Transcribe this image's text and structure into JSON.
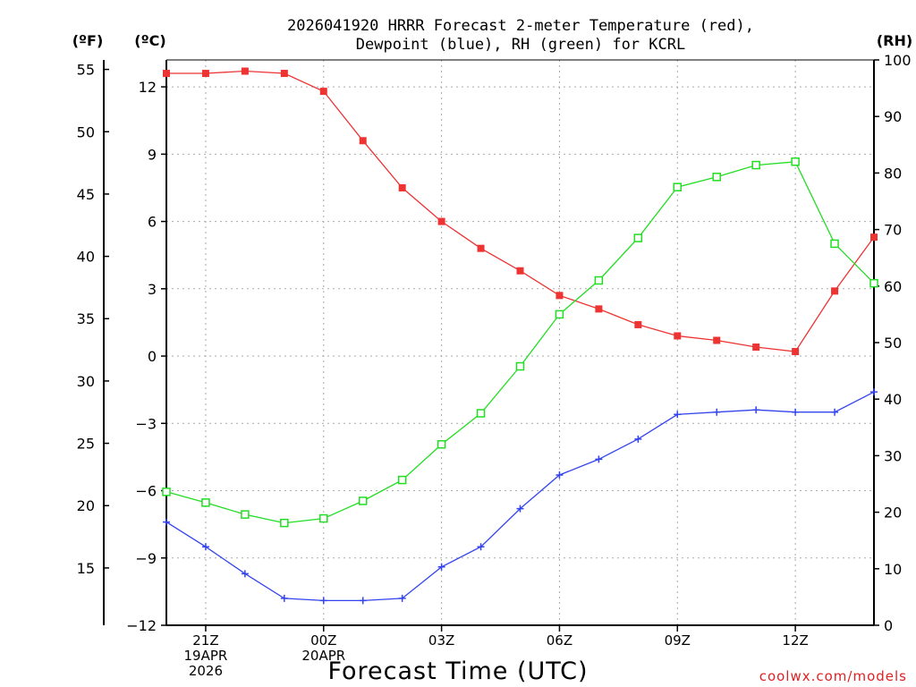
{
  "chart_data": {
    "type": "line",
    "title_line1": "2026041920 HRRR Forecast 2-meter Temperature (red),",
    "title_line2": "Dewpoint (blue), RH (green) for KCRL",
    "unit_f": "(ºF)",
    "unit_c": "(ºC)",
    "unit_rh": "(RH)",
    "xlabel": "Forecast Time (UTC)",
    "credit": "coolwx.com/models",
    "x_hours": [
      20,
      21,
      22,
      23,
      24,
      25,
      26,
      27,
      28,
      29,
      30,
      31,
      32,
      33,
      34,
      35,
      36,
      37,
      38
    ],
    "xlim": [
      20,
      38
    ],
    "x_ticks": [
      {
        "x": 21,
        "lines": [
          "21Z",
          "19APR",
          "2026"
        ]
      },
      {
        "x": 24,
        "lines": [
          "00Z",
          "20APR"
        ]
      },
      {
        "x": 27,
        "lines": [
          "03Z"
        ]
      },
      {
        "x": 30,
        "lines": [
          "06Z"
        ]
      },
      {
        "x": 33,
        "lines": [
          "09Z"
        ]
      },
      {
        "x": 36,
        "lines": [
          "12Z"
        ]
      }
    ],
    "y_celsius": {
      "lim": [
        -12,
        13.2
      ],
      "ticks": [
        "-12",
        "-9",
        "-6",
        "-3",
        "0",
        "3",
        "6",
        "9",
        "12"
      ]
    },
    "y_fahrenheit": {
      "ticks": [
        "15",
        "20",
        "25",
        "30",
        "35",
        "40",
        "45",
        "50",
        "55"
      ]
    },
    "y_rh": {
      "lim": [
        0,
        100
      ],
      "ticks": [
        "0",
        "10",
        "20",
        "30",
        "40",
        "50",
        "60",
        "70",
        "80",
        "90",
        "100"
      ]
    },
    "series": [
      {
        "name": "Temperature",
        "unit": "C",
        "color": "#ee3333",
        "marker": "filled-square",
        "values": [
          12.6,
          12.6,
          12.7,
          12.6,
          11.8,
          9.6,
          7.5,
          6.0,
          4.8,
          3.8,
          2.7,
          2.1,
          1.4,
          0.9,
          0.7,
          0.4,
          0.2,
          2.9,
          5.3
        ]
      },
      {
        "name": "Dewpoint",
        "unit": "C",
        "color": "#3344ee",
        "marker": "plus",
        "values": [
          -7.4,
          -8.5,
          -9.7,
          -10.8,
          -10.9,
          -10.9,
          -10.8,
          -9.4,
          -8.5,
          -6.8,
          -5.3,
          -4.6,
          -3.7,
          -2.6,
          -2.5,
          -2.4,
          -2.5,
          -2.5,
          -1.6
        ]
      },
      {
        "name": "RH",
        "unit": "%",
        "color": "#22dd22",
        "marker": "open-square",
        "values": [
          23.6,
          21.7,
          19.6,
          18.1,
          18.9,
          22.0,
          25.7,
          32.0,
          37.5,
          45.8,
          55.0,
          61.0,
          68.5,
          77.5,
          79.3,
          81.4,
          82.0,
          67.5,
          60.5
        ]
      }
    ]
  }
}
